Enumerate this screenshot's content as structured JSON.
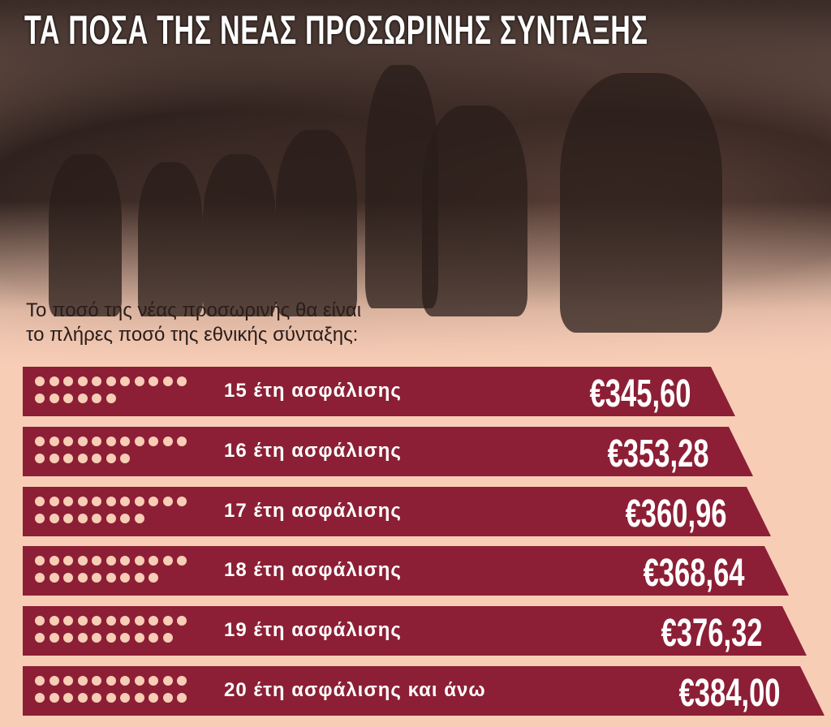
{
  "title": "ΤΑ ΠΟΣΑ ΤΗΣ ΝΕΑΣ ΠΡΟΣΩΡΙΝΗΣ ΣΥΝΤΑΞΗΣ",
  "subtitle_line1": "Το ποσό της νέας προσωρινής θα είναι",
  "subtitle_line2": "το πλήρες ποσό της εθνικής σύνταξης:",
  "colors": {
    "bar": "#8c1f35",
    "background": "#f8cdb6",
    "dots": "#f8cdb6"
  },
  "chart_data": {
    "type": "bar",
    "orientation": "horizontal",
    "categories": [
      "15 έτη ασφάλισης",
      "16 έτη ασφάλισης",
      "17 έτη ασφάλισης",
      "18 έτη ασφάλισης",
      "19 έτη ασφάλισης",
      "20 έτη ασφάλισης και άνω"
    ],
    "values": [
      345.6,
      353.28,
      360.96,
      368.64,
      376.32,
      384.0
    ],
    "value_labels": [
      "€345,60",
      "€353,28",
      "€360,96",
      "€368,64",
      "€376,32",
      "€384,00"
    ],
    "dot_counts": [
      17,
      18,
      19,
      20,
      21,
      22
    ]
  }
}
